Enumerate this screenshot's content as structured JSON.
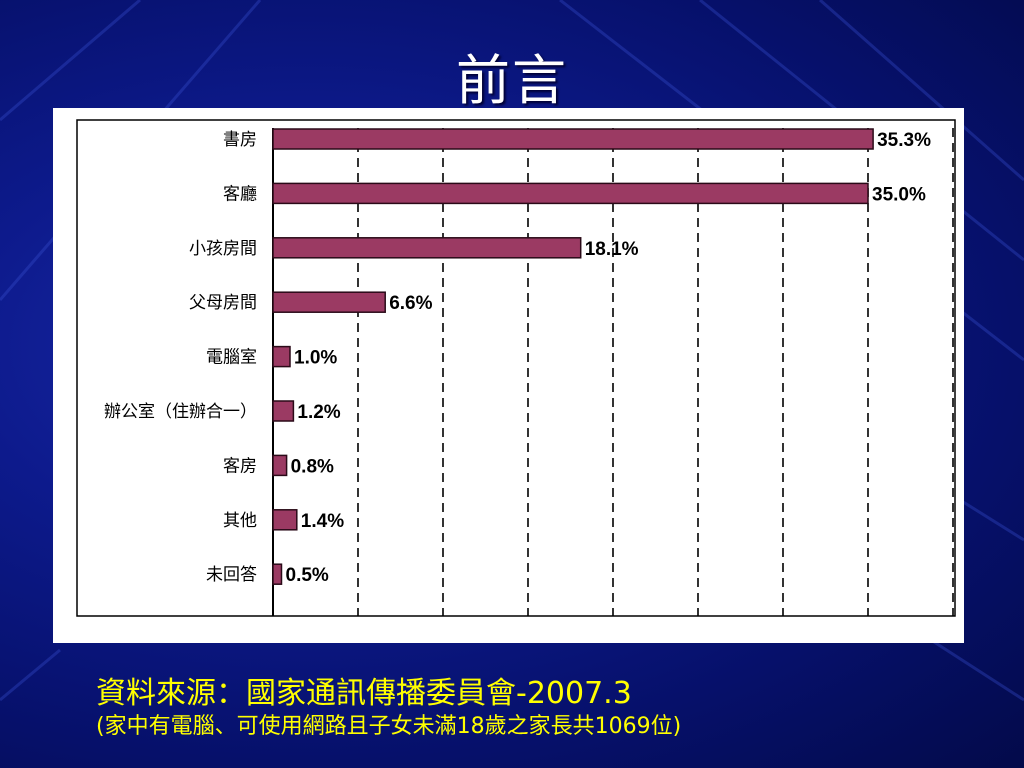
{
  "slide": {
    "title": "前言",
    "source_line1": "資料來源：國家通訊傳播委員會-2007.3",
    "source_line2": "(家中有電腦、可使用網路且子女未滿18歲之家長共1069位)"
  },
  "colors": {
    "bar_fill": "#9b3a63",
    "bar_stroke": "#2a0a18",
    "background": "#0d1a8c",
    "source_text": "#ffff00"
  },
  "chart_data": {
    "type": "bar",
    "orientation": "horizontal",
    "categories": [
      "書房",
      "客廳",
      "小孩房間",
      "父母房間",
      "電腦室",
      "辦公室（住辦合一）",
      "客房",
      "其他",
      "未回答"
    ],
    "values": [
      35.3,
      35.0,
      18.1,
      6.6,
      1.0,
      1.2,
      0.8,
      1.4,
      0.5
    ],
    "data_labels": [
      "35.3%",
      "35.0%",
      "18.1%",
      "6.6%",
      "1.0%",
      "1.2%",
      "0.8%",
      "1.4%",
      "0.5%"
    ],
    "xlim": [
      0,
      40
    ],
    "grid_step": 5,
    "grid": true,
    "title": "",
    "xlabel": "",
    "ylabel": ""
  }
}
